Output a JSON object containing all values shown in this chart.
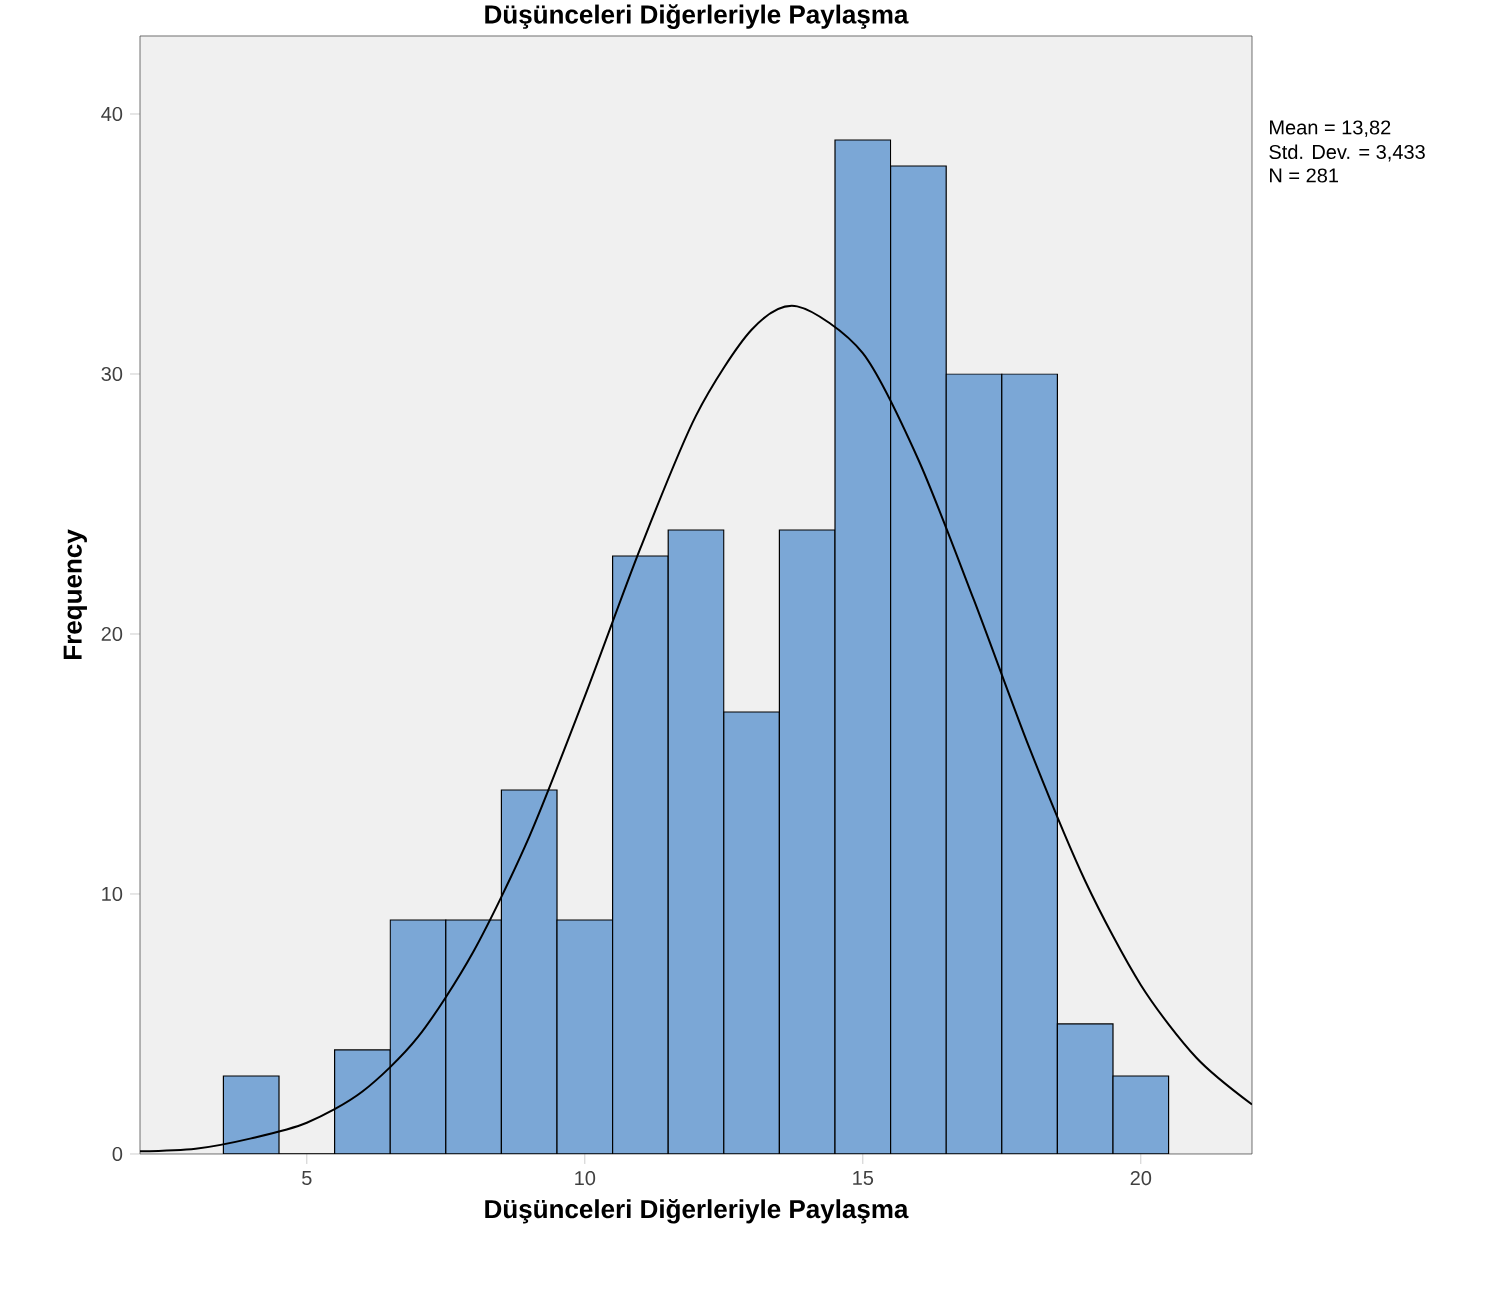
{
  "chart_data": {
    "type": "histogram",
    "title": "Düşünceleri Diğerleriyle Paylaşma",
    "xlabel": "Düşünceleri Diğerleriyle Paylaşma",
    "ylabel": "Frequency",
    "bins": [
      3.5,
      4.5,
      5.5,
      6.5,
      7.5,
      8.5,
      9.5,
      10.5,
      11.5,
      12.5,
      13.5,
      14.5,
      15.5,
      16.5,
      17.5,
      18.5,
      19.5,
      20.5
    ],
    "values": [
      3,
      0,
      4,
      9,
      9,
      14,
      9,
      23,
      24,
      17,
      24,
      39,
      38,
      30,
      30,
      5,
      3
    ],
    "color": "#7ba7d6",
    "series": [
      {
        "type": "line",
        "color": "#000000",
        "x": [
          2,
          3,
          4,
          5,
          6,
          7,
          8,
          9,
          10,
          11,
          12,
          13,
          13.82,
          15,
          16,
          17,
          18,
          19,
          20,
          21,
          22
        ],
        "values": [
          0.1,
          0.2,
          0.6,
          1.2,
          2.4,
          4.5,
          7.8,
          12.2,
          17.6,
          23.3,
          28.4,
          31.7,
          32.6,
          30.8,
          26.7,
          21.3,
          15.6,
          10.5,
          6.5,
          3.7,
          1.9
        ]
      }
    ],
    "xlim": [
      2,
      22
    ],
    "ylim": [
      0,
      43
    ],
    "xticks": [
      5,
      10,
      15,
      20
    ],
    "yticks": [
      0,
      10,
      20,
      30,
      40
    ],
    "annotations": [
      "Mean = 13,82",
      "Std. Dev. = 3,433",
      "N = 281"
    ]
  }
}
